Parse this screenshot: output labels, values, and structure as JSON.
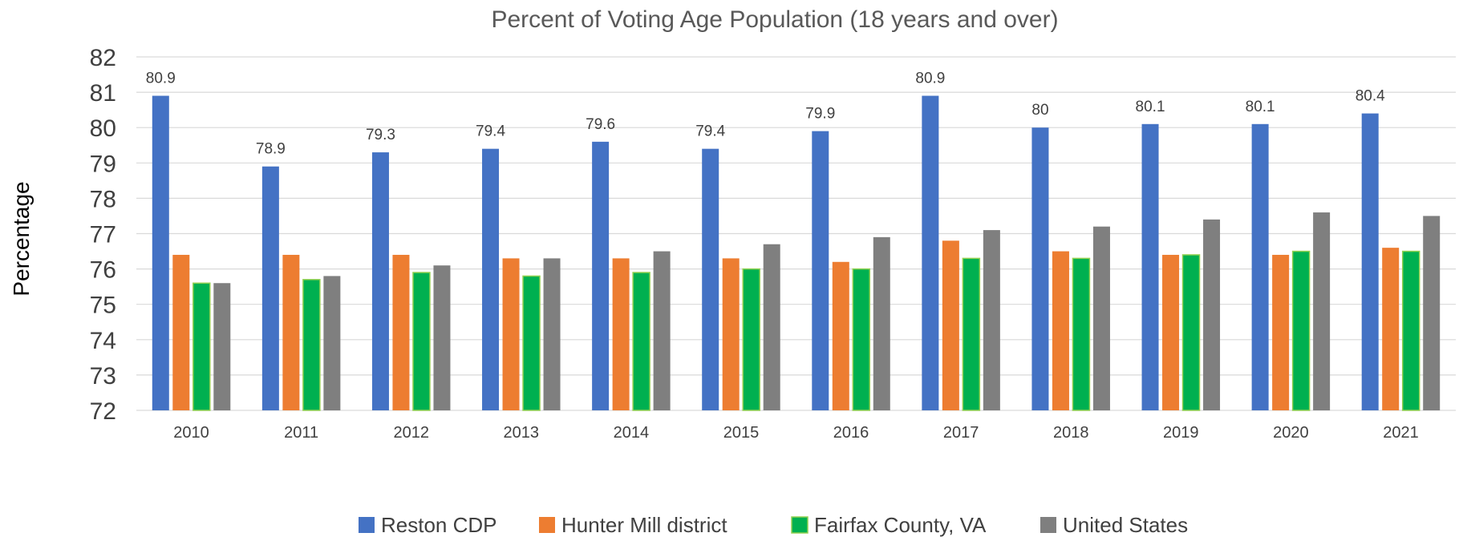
{
  "chart_data": {
    "type": "bar",
    "title": "Percent of Voting Age Population (18 years and over)",
    "xlabel": "",
    "ylabel": "Percentage",
    "ylim": [
      72,
      82
    ],
    "yticks": [
      "72",
      "73",
      "74",
      "75",
      "76",
      "77",
      "78",
      "79",
      "80",
      "81",
      "82"
    ],
    "grid": true,
    "legend_position": "bottom",
    "categories": [
      "2010",
      "2011",
      "2012",
      "2013",
      "2014",
      "2015",
      "2016",
      "2017",
      "2018",
      "2019",
      "2020",
      "2021"
    ],
    "series": [
      {
        "name": "Reston CDP",
        "color": "#4472c4",
        "values": [
          80.9,
          78.9,
          79.3,
          79.4,
          79.6,
          79.4,
          79.9,
          80.9,
          80,
          80.1,
          80.1,
          80.4
        ],
        "data_labels": [
          "80.9",
          "78.9",
          "79.3",
          "79.4",
          "79.6",
          "79.4",
          "79.9",
          "80.9",
          "80",
          "80.1",
          "80.1",
          "80.4"
        ]
      },
      {
        "name": "Hunter Mill district",
        "color": "#ed7d31",
        "values": [
          76.4,
          76.4,
          76.4,
          76.3,
          76.3,
          76.3,
          76.2,
          76.8,
          76.5,
          76.4,
          76.4,
          76.6
        ]
      },
      {
        "name": "Fairfax County, VA",
        "color": "#00b050",
        "values": [
          75.6,
          75.7,
          75.9,
          75.8,
          75.9,
          76.0,
          76.0,
          76.3,
          76.3,
          76.4,
          76.5,
          76.5
        ]
      },
      {
        "name": "United States",
        "color": "#7f7f7f",
        "values": [
          75.6,
          75.8,
          76.1,
          76.3,
          76.5,
          76.7,
          76.9,
          77.1,
          77.2,
          77.4,
          77.6,
          77.5
        ]
      }
    ]
  }
}
